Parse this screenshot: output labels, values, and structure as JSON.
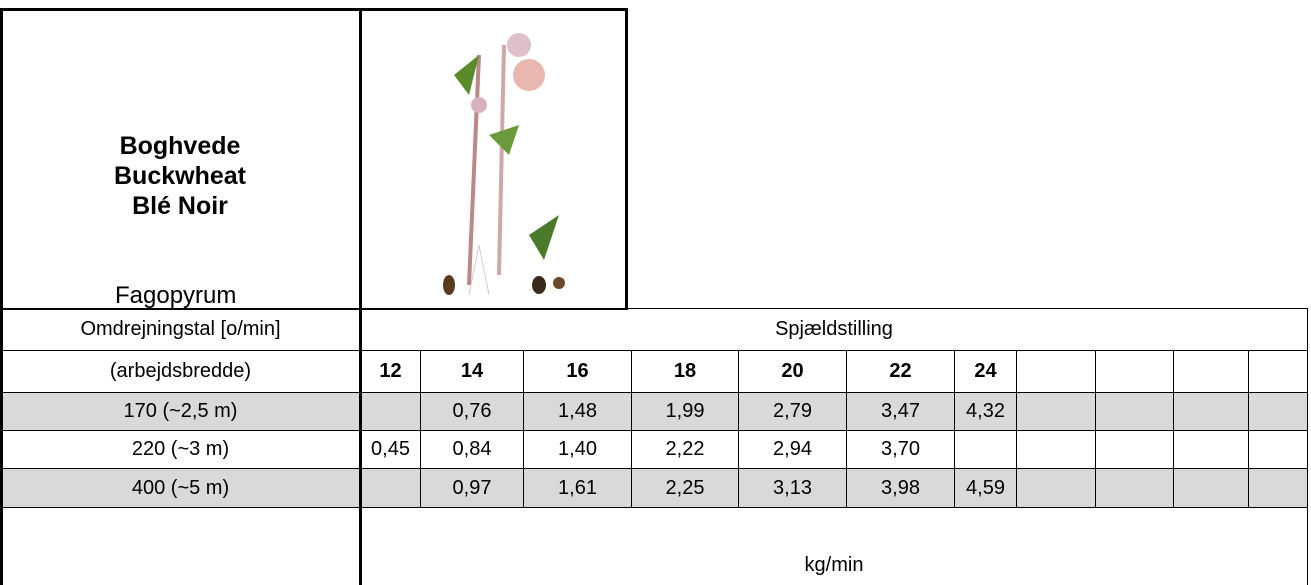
{
  "header": {
    "names": [
      "Boghvede",
      "Buckwheat",
      "Blé Noir"
    ],
    "latin": "Fagopyrum"
  },
  "table": {
    "row_header": "Omdrejningstal [o/min]",
    "column_header": "Spjældstilling",
    "width_header": "(arbejdsbredde)",
    "columns": [
      12,
      14,
      16,
      18,
      20,
      22,
      24
    ],
    "rows": [
      {
        "label": "170 (~2,5 m)",
        "values": [
          null,
          "0,76",
          "1,48",
          "1,99",
          "2,79",
          "3,47",
          "4,32"
        ]
      },
      {
        "label": "220 (~3 m)",
        "values": [
          "0,45",
          "0,84",
          "1,40",
          "2,22",
          "2,94",
          "3,70",
          null
        ]
      },
      {
        "label": "400 (~5 m)",
        "values": [
          null,
          "0,97",
          "1,61",
          "2,25",
          "3,13",
          "3,98",
          "4,59"
        ]
      }
    ],
    "unit": "kg/min"
  }
}
